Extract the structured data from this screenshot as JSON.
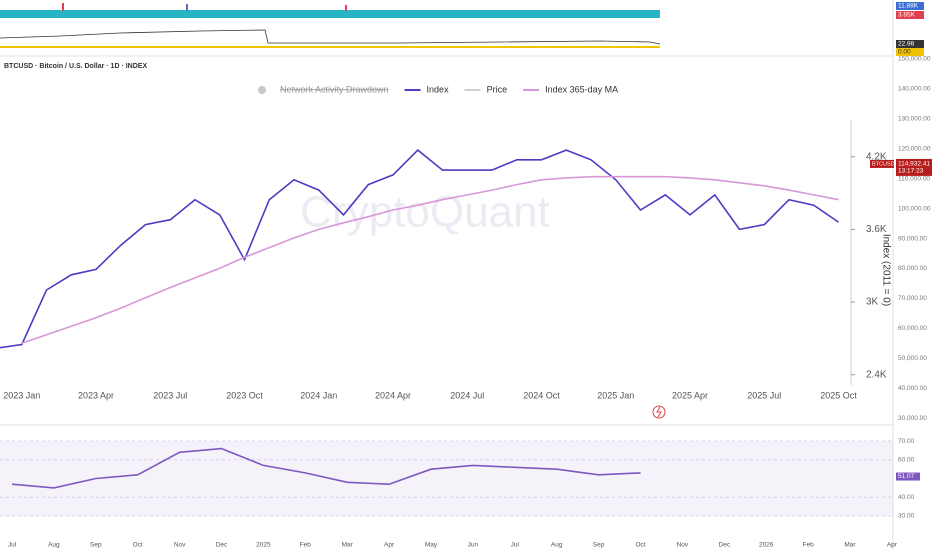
{
  "chart_data": [
    {
      "type": "area",
      "badges": [
        {
          "value": 11880,
          "label": "11.88K",
          "color": "#3b6fd6"
        },
        {
          "value": 3850,
          "label": "3.85K",
          "color": "#e0404f"
        },
        {
          "value": 22.98,
          "label": "22.98",
          "color": "#333333"
        },
        {
          "value": 0,
          "label": "0.00",
          "color": "#f2c200"
        }
      ]
    },
    {
      "type": "line",
      "title": "BTCUSD · Bitcoin / U.S. Dollar · 1D · INDEX",
      "watermark": "CryptoQuant",
      "ylabel": "Index (2011 = 0)",
      "categories": [
        null,
        "2023 Jan",
        null,
        null,
        "2023 Apr",
        null,
        null,
        "2023 Jul",
        null,
        null,
        "2023 Oct",
        null,
        null,
        "2024 Jan",
        null,
        null,
        "2024 Apr",
        null,
        null,
        "2024 Jul",
        null,
        null,
        "2024 Oct",
        null,
        null,
        "2025 Jan",
        null,
        null,
        "2025 Apr",
        null,
        null,
        "2025 Jul",
        null,
        null,
        "2025 Oct"
      ],
      "series": [
        {
          "name": "Network Activity Drawdown",
          "color": "#c8c8c8",
          "hidden": true
        },
        {
          "name": "Index",
          "color": "#4a3cc4",
          "values": [
            2620,
            2650,
            3100,
            3225,
            3270,
            3470,
            3640,
            3680,
            3845,
            3720,
            3350,
            3845,
            4010,
            3925,
            3720,
            3970,
            4050,
            4255,
            4090,
            4090,
            4090,
            4175,
            4175,
            4255,
            4175,
            4010,
            3760,
            3885,
            3720,
            3885,
            3600,
            3640,
            3845,
            3800,
            3660
          ]
        },
        {
          "name": "Price",
          "color": "#d0d0d0"
        },
        {
          "name": "Index 365-day MA",
          "color": "#d898d8",
          "values": [
            null,
            2660,
            2730,
            2800,
            2870,
            2950,
            3035,
            3120,
            3200,
            3280,
            3370,
            3450,
            3530,
            3600,
            3655,
            3705,
            3760,
            3800,
            3845,
            3885,
            3925,
            3970,
            4010,
            4025,
            4035,
            4035,
            4035,
            4035,
            4025,
            4010,
            3985,
            3960,
            3925,
            3885,
            3845
          ]
        }
      ],
      "ylim": [
        2340,
        4520
      ],
      "yticks": [
        {
          "value": 2400,
          "label": "2.4K"
        },
        {
          "value": 3000,
          "label": "3K"
        },
        {
          "value": 3600,
          "label": "3.6K"
        },
        {
          "value": 4200,
          "label": "4.2K"
        }
      ],
      "price_ylim": [
        27700,
        153000
      ],
      "price_ticks": [
        {
          "value": 150000,
          "label": "150,000.00"
        },
        {
          "value": 140000,
          "label": "140,000.00"
        },
        {
          "value": 130000,
          "label": "130,000.00"
        },
        {
          "value": 120000,
          "label": "120,000.00"
        },
        {
          "value": 110000,
          "label": "110,000.00"
        },
        {
          "value": 100000,
          "label": "100,000.00"
        },
        {
          "value": 90000,
          "label": "90,000.00"
        },
        {
          "value": 80000,
          "label": "80,000.00"
        },
        {
          "value": 70000,
          "label": "70,000.00"
        },
        {
          "value": 60000,
          "label": "60,000.00"
        },
        {
          "value": 50000,
          "label": "50,000.00"
        },
        {
          "value": 40000,
          "label": "40,000.00"
        },
        {
          "value": 30000,
          "label": "30,000.00"
        }
      ],
      "price_badge": {
        "symbol": "BTCUSD",
        "value": 114932.41,
        "label": "114,932.41",
        "time": "13:17:23",
        "color": "#b71c1c"
      }
    },
    {
      "type": "line",
      "categories": [
        "Jul",
        "Aug",
        "Sep",
        "Oct",
        "Nov",
        "Dec",
        "2025",
        "Feb",
        "Mar",
        "Apr",
        "May",
        "Jun",
        "Jul",
        "Aug",
        "Sep",
        "Oct",
        "Nov",
        "Dec",
        "2026",
        "Feb",
        "Mar",
        "Apr"
      ],
      "series": [
        {
          "color": "#7e57c2",
          "values": [
            47,
            45,
            50,
            52,
            64,
            66,
            57,
            53,
            48,
            47,
            55,
            57,
            56,
            55,
            52,
            53,
            null,
            null,
            null,
            null,
            null,
            null
          ]
        }
      ],
      "ylim": [
        17.2,
        75.9
      ],
      "yticks": [
        {
          "value": 70,
          "label": "70.00"
        },
        {
          "value": 60,
          "label": "60.00"
        },
        {
          "value": 40,
          "label": "40.00"
        },
        {
          "value": 30,
          "label": "30.00"
        }
      ],
      "badge": {
        "value": 51.07,
        "label": "51.07",
        "color": "#7e57c2"
      }
    }
  ]
}
